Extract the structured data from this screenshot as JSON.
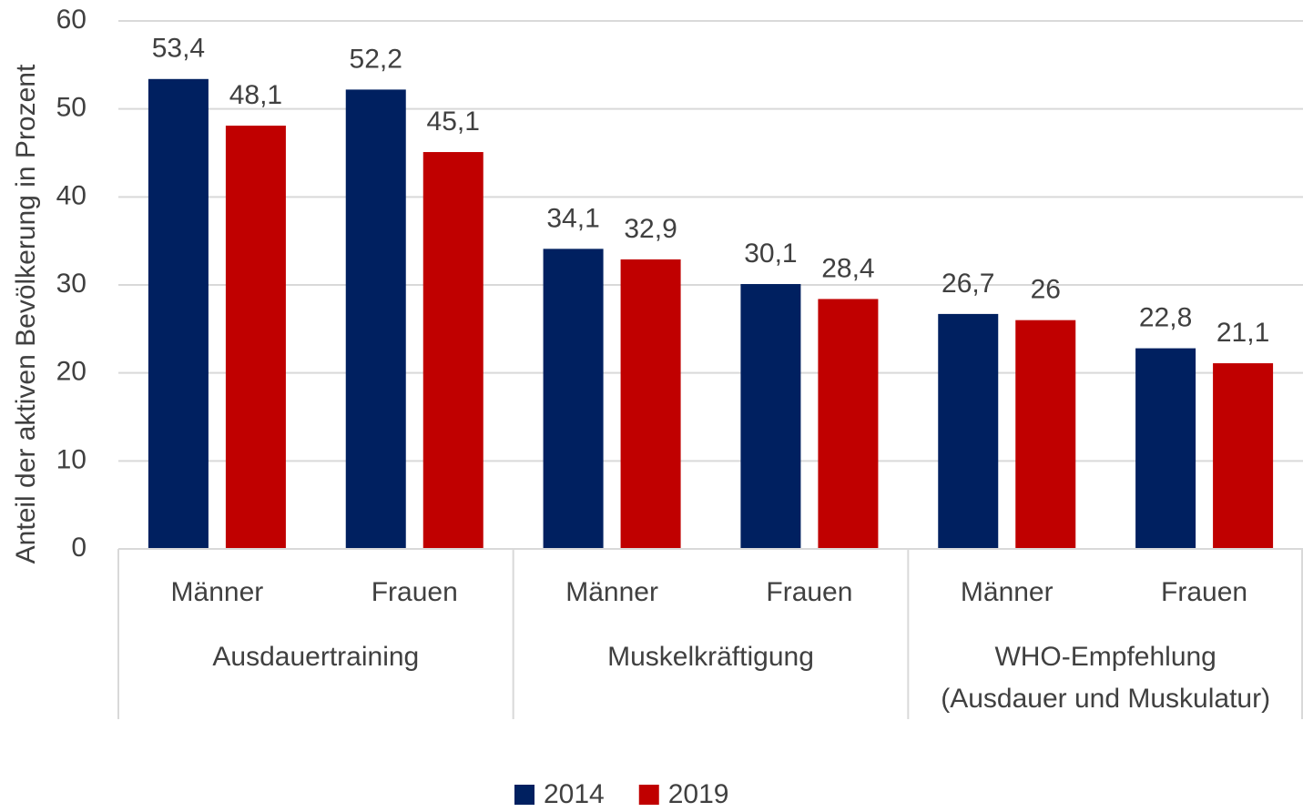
{
  "chart_data": {
    "type": "bar",
    "y_label": "Anteil der aktiven Bevölkerung in Prozent",
    "categories": [
      "Männer",
      "Frauen",
      "Männer",
      "Frauen",
      "Männer",
      "Frauen"
    ],
    "category_groups": [
      [
        "Ausdauertraining"
      ],
      [
        "Muskelkräftigung"
      ],
      [
        "WHO-Empfehlung",
        "(Ausdauer und Muskulatur)"
      ]
    ],
    "series": [
      {
        "name": "2014",
        "color": "#002060",
        "values": [
          53.4,
          52.2,
          34.1,
          30.1,
          26.7,
          22.8
        ],
        "value_labels": [
          "53,4",
          "52,2",
          "34,1",
          "30,1",
          "26,7",
          "22,8"
        ]
      },
      {
        "name": "2019",
        "color": "#c00000",
        "values": [
          48.1,
          45.1,
          32.9,
          28.4,
          26,
          21.1
        ],
        "value_labels": [
          "48,1",
          "45,1",
          "32,9",
          "28,4",
          "26",
          "21,1"
        ]
      }
    ],
    "ylim": [
      0,
      60
    ],
    "yticks": [
      0,
      10,
      20,
      30,
      40,
      50,
      60
    ],
    "grid": true,
    "legend": "bottom"
  }
}
